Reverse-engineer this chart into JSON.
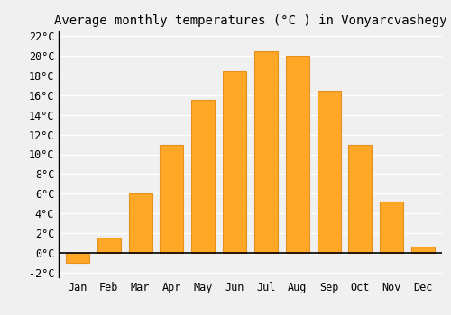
{
  "title": "Average monthly temperatures (°C ) in Vonyarcvashegy",
  "months": [
    "Jan",
    "Feb",
    "Mar",
    "Apr",
    "May",
    "Jun",
    "Jul",
    "Aug",
    "Sep",
    "Oct",
    "Nov",
    "Dec"
  ],
  "temperatures": [
    -1.0,
    1.5,
    6.0,
    11.0,
    15.5,
    18.5,
    20.5,
    20.0,
    16.5,
    11.0,
    5.2,
    0.6
  ],
  "bar_color": "#FFA726",
  "bar_edge_color": "#E69020",
  "ylim": [
    -2.5,
    22.5
  ],
  "yticks": [
    -2,
    0,
    2,
    4,
    6,
    8,
    10,
    12,
    14,
    16,
    18,
    20,
    22
  ],
  "ytick_labels": [
    "-2°C",
    "0°C",
    "2°C",
    "4°C",
    "6°C",
    "8°C",
    "10°C",
    "12°C",
    "14°C",
    "16°C",
    "18°C",
    "20°C",
    "22°C"
  ],
  "bg_color": "#f0f0f0",
  "grid_color": "#ffffff",
  "title_fontsize": 10,
  "tick_fontsize": 8.5,
  "bar_width": 0.75
}
